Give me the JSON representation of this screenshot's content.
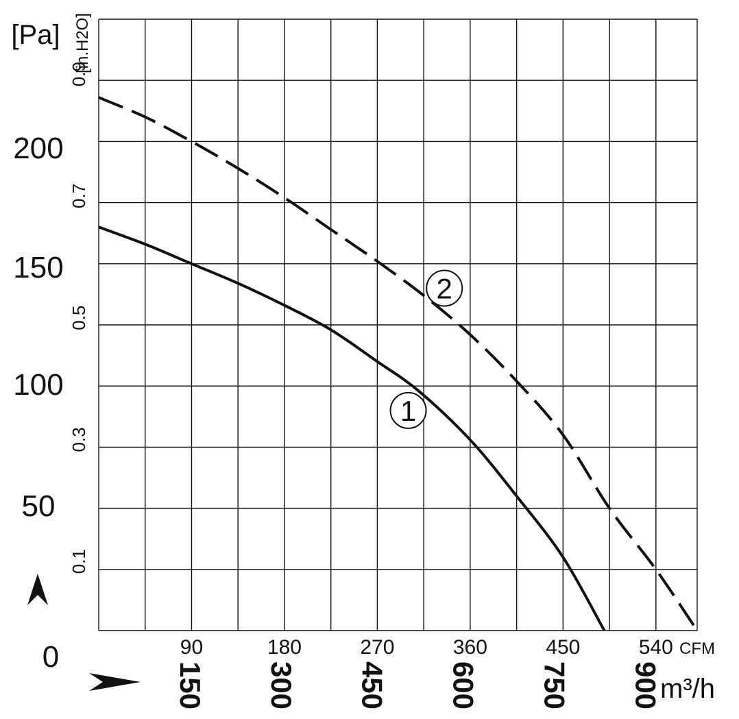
{
  "chart_data": {
    "type": "line",
    "title": "",
    "xlabel_top": "CFM",
    "xlabel_bottom": "m³/h",
    "ylabel_left": "[Pa]",
    "ylabel_right": "[in.H2O]",
    "xlim_cfm": [
      0,
      580
    ],
    "ylim_pa": [
      0,
      250
    ],
    "grid": true,
    "x_ticks_cfm": [
      "90",
      "180",
      "270",
      "360",
      "450",
      "540"
    ],
    "x_ticks_m3h": [
      "150",
      "300",
      "450",
      "600",
      "750",
      "900"
    ],
    "y_ticks_pa": [
      "0",
      "50",
      "100",
      "150",
      "200"
    ],
    "y_ticks_inh2o": [
      "0.1",
      "0.3",
      "0.5",
      "0.7",
      "0.9"
    ],
    "series": [
      {
        "name": "1",
        "style": "solid",
        "x_cfm": [
          0,
          45,
          90,
          135,
          180,
          225,
          270,
          310,
          360,
          405,
          450,
          490
        ],
        "y_pa": [
          165,
          158,
          150,
          142,
          133,
          123,
          110,
          98,
          78,
          55,
          30,
          0
        ]
      },
      {
        "name": "2",
        "style": "dashed",
        "x_cfm": [
          0,
          45,
          90,
          135,
          180,
          225,
          270,
          315,
          360,
          405,
          450,
          495,
          540,
          580
        ],
        "y_pa": [
          218,
          210,
          200,
          189,
          177,
          164,
          151,
          137,
          121,
          102,
          80,
          50,
          25,
          0
        ]
      }
    ],
    "decor": {
      "up_arrow_icon": "up-arrowhead-icon",
      "right_arrow_icon": "right-arrowhead-icon"
    }
  }
}
